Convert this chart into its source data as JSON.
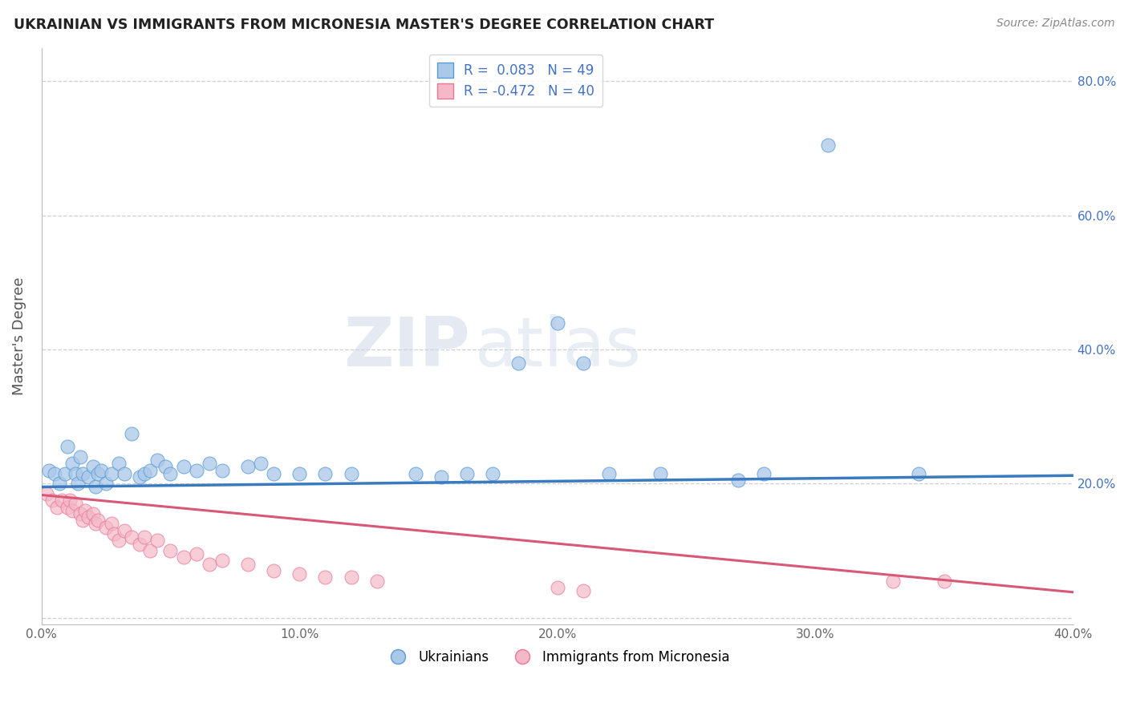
{
  "title": "UKRAINIAN VS IMMIGRANTS FROM MICRONESIA MASTER'S DEGREE CORRELATION CHART",
  "source": "Source: ZipAtlas.com",
  "ylabel": "Master's Degree",
  "xlim": [
    0.0,
    0.4
  ],
  "ylim": [
    -0.01,
    0.85
  ],
  "ytick_vals": [
    0.0,
    0.2,
    0.4,
    0.6,
    0.8
  ],
  "xtick_vals": [
    0.0,
    0.1,
    0.2,
    0.3,
    0.4
  ],
  "R_blue": 0.083,
  "N_blue": 49,
  "R_pink": -0.472,
  "N_pink": 40,
  "blue_face": "#aac8e8",
  "blue_edge": "#5b9bd5",
  "blue_line": "#3a7abf",
  "pink_face": "#f4b8c8",
  "pink_edge": "#e87898",
  "pink_line": "#d85878",
  "watermark_zip": "ZIP",
  "watermark_atlas": "atlas",
  "title_color": "#222222",
  "source_color": "#888888",
  "axis_label_color": "#555555",
  "tick_color": "#666666",
  "right_tick_color": "#4472c4",
  "grid_color": "#bbbbbb",
  "bg_color": "#ffffff",
  "blue_scatter": [
    [
      0.003,
      0.22
    ],
    [
      0.005,
      0.215
    ],
    [
      0.007,
      0.2
    ],
    [
      0.009,
      0.215
    ],
    [
      0.01,
      0.255
    ],
    [
      0.012,
      0.23
    ],
    [
      0.013,
      0.215
    ],
    [
      0.014,
      0.2
    ],
    [
      0.015,
      0.24
    ],
    [
      0.016,
      0.215
    ],
    [
      0.018,
      0.21
    ],
    [
      0.02,
      0.225
    ],
    [
      0.021,
      0.195
    ],
    [
      0.022,
      0.215
    ],
    [
      0.023,
      0.22
    ],
    [
      0.025,
      0.2
    ],
    [
      0.027,
      0.215
    ],
    [
      0.03,
      0.23
    ],
    [
      0.032,
      0.215
    ],
    [
      0.035,
      0.275
    ],
    [
      0.038,
      0.21
    ],
    [
      0.04,
      0.215
    ],
    [
      0.042,
      0.22
    ],
    [
      0.045,
      0.235
    ],
    [
      0.048,
      0.225
    ],
    [
      0.05,
      0.215
    ],
    [
      0.055,
      0.225
    ],
    [
      0.06,
      0.22
    ],
    [
      0.065,
      0.23
    ],
    [
      0.07,
      0.22
    ],
    [
      0.08,
      0.225
    ],
    [
      0.085,
      0.23
    ],
    [
      0.09,
      0.215
    ],
    [
      0.1,
      0.215
    ],
    [
      0.11,
      0.215
    ],
    [
      0.12,
      0.215
    ],
    [
      0.145,
      0.215
    ],
    [
      0.155,
      0.21
    ],
    [
      0.165,
      0.215
    ],
    [
      0.175,
      0.215
    ],
    [
      0.185,
      0.38
    ],
    [
      0.2,
      0.44
    ],
    [
      0.21,
      0.38
    ],
    [
      0.22,
      0.215
    ],
    [
      0.24,
      0.215
    ],
    [
      0.27,
      0.205
    ],
    [
      0.28,
      0.215
    ],
    [
      0.305,
      0.705
    ],
    [
      0.34,
      0.215
    ]
  ],
  "pink_scatter": [
    [
      0.002,
      0.185
    ],
    [
      0.004,
      0.175
    ],
    [
      0.006,
      0.165
    ],
    [
      0.008,
      0.175
    ],
    [
      0.01,
      0.165
    ],
    [
      0.011,
      0.175
    ],
    [
      0.012,
      0.16
    ],
    [
      0.013,
      0.17
    ],
    [
      0.015,
      0.155
    ],
    [
      0.016,
      0.145
    ],
    [
      0.017,
      0.16
    ],
    [
      0.018,
      0.15
    ],
    [
      0.02,
      0.155
    ],
    [
      0.021,
      0.14
    ],
    [
      0.022,
      0.145
    ],
    [
      0.025,
      0.135
    ],
    [
      0.027,
      0.14
    ],
    [
      0.028,
      0.125
    ],
    [
      0.03,
      0.115
    ],
    [
      0.032,
      0.13
    ],
    [
      0.035,
      0.12
    ],
    [
      0.038,
      0.11
    ],
    [
      0.04,
      0.12
    ],
    [
      0.042,
      0.1
    ],
    [
      0.045,
      0.115
    ],
    [
      0.05,
      0.1
    ],
    [
      0.055,
      0.09
    ],
    [
      0.06,
      0.095
    ],
    [
      0.065,
      0.08
    ],
    [
      0.07,
      0.085
    ],
    [
      0.08,
      0.08
    ],
    [
      0.09,
      0.07
    ],
    [
      0.1,
      0.065
    ],
    [
      0.11,
      0.06
    ],
    [
      0.12,
      0.06
    ],
    [
      0.13,
      0.055
    ],
    [
      0.2,
      0.045
    ],
    [
      0.21,
      0.04
    ],
    [
      0.33,
      0.055
    ],
    [
      0.35,
      0.055
    ]
  ]
}
